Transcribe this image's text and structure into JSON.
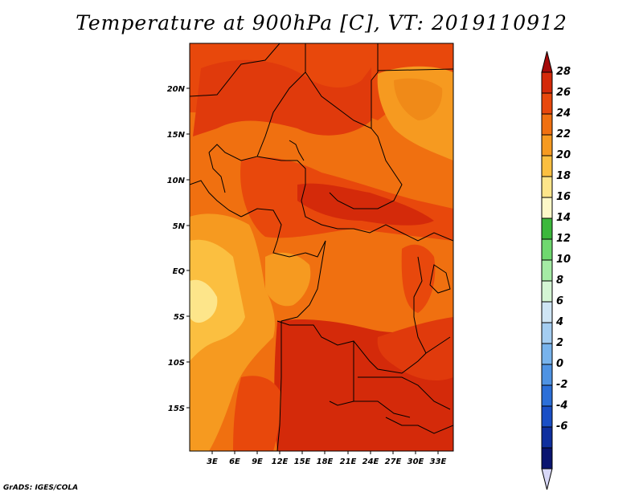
{
  "title": "Temperature at 900hPa [C], VT: 2019110912",
  "footer": "GrADS: IGES/COLA",
  "map": {
    "lat_labels": [
      "20N",
      "15N",
      "10N",
      "5N",
      "EQ",
      "5S",
      "10S",
      "15S"
    ],
    "lon_labels": [
      "3E",
      "6E",
      "9E",
      "12E",
      "15E",
      "18E",
      "21E",
      "24E",
      "27E",
      "30E",
      "33E"
    ]
  },
  "colorbar": {
    "labels": [
      "28",
      "26",
      "24",
      "22",
      "20",
      "18",
      "16",
      "14",
      "12",
      "10",
      "8",
      "6",
      "4",
      "2",
      "0",
      "-2",
      "-4",
      "-6"
    ],
    "colors": [
      "#a50a0a",
      "#d42a0a",
      "#e8480c",
      "#f07010",
      "#f69a20",
      "#fbbf40",
      "#fde58a",
      "#fdf8c8",
      "#3cb83c",
      "#6fd86f",
      "#a5eba5",
      "#d4f5d4",
      "#cfe5f5",
      "#a4cdf1",
      "#78b3ec",
      "#4f93e3",
      "#2c6fd8",
      "#1a4fc6",
      "#0f2f9e",
      "#0a1470",
      "#d8d8f8"
    ]
  }
}
